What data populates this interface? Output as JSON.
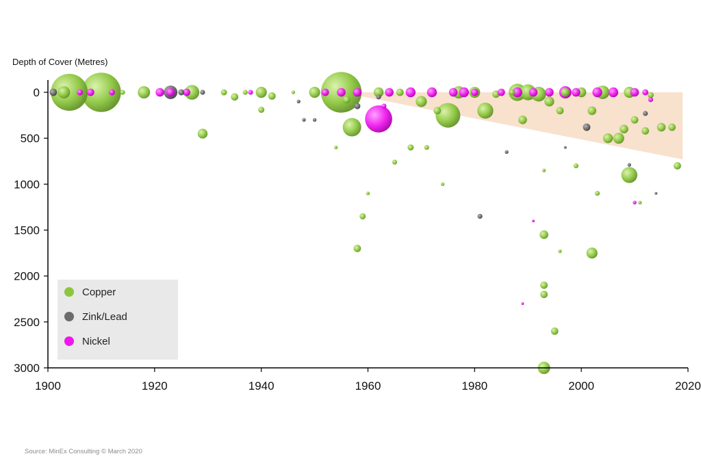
{
  "chart_data": {
    "type": "scatter",
    "title": "",
    "ylabel": "Depth of Cover (Metres)",
    "xlabel": "",
    "xlim": [
      1900,
      2020
    ],
    "ylim": [
      0,
      3000
    ],
    "y_inverted": true,
    "xticks": [
      "1900",
      "1920",
      "1940",
      "1960",
      "1980",
      "2000",
      "2020"
    ],
    "yticks": [
      "0",
      "500",
      "1000",
      "1500",
      "2000",
      "2500",
      "3000"
    ],
    "grid": false,
    "legend_position": "bottom-left",
    "trend_band": {
      "color": "#f6d7bc",
      "upper": [
        [
          1955,
          0
        ],
        [
          2019,
          0
        ]
      ],
      "lower": [
        [
          1955,
          0
        ],
        [
          2019,
          730
        ]
      ]
    },
    "series": [
      {
        "name": "Copper",
        "color": "#8cc63f",
        "points": [
          [
            1904,
            0,
            3
          ],
          [
            1910,
            0,
            3.2
          ],
          [
            1903,
            0,
            1
          ],
          [
            1914,
            0,
            0.4
          ],
          [
            1918,
            0,
            1
          ],
          [
            1927,
            0,
            1.2
          ],
          [
            1929,
            450,
            0.8
          ],
          [
            1933,
            0,
            0.5
          ],
          [
            1935,
            50,
            0.6
          ],
          [
            1937,
            0,
            0.4
          ],
          [
            1940,
            0,
            0.9
          ],
          [
            1940,
            190,
            0.5
          ],
          [
            1942,
            40,
            0.6
          ],
          [
            1946,
            0,
            0.3
          ],
          [
            1950,
            0,
            0.9
          ],
          [
            1955,
            0,
            3.3
          ],
          [
            1957,
            380,
            1.5
          ],
          [
            1956,
            80,
            0.6
          ],
          [
            1954,
            600,
            0.3
          ],
          [
            1958,
            1700,
            0.6
          ],
          [
            1959,
            1350,
            0.5
          ],
          [
            1960,
            1100,
            0.3
          ],
          [
            1965,
            760,
            0.4
          ],
          [
            1968,
            600,
            0.5
          ],
          [
            1971,
            600,
            0.4
          ],
          [
            1970,
            100,
            0.9
          ],
          [
            1975,
            250,
            2.0
          ],
          [
            1973,
            200,
            0.6
          ],
          [
            1977,
            0,
            1
          ],
          [
            1980,
            0,
            0.9
          ],
          [
            1982,
            200,
            1.3
          ],
          [
            1984,
            20,
            0.6
          ],
          [
            1987,
            0,
            0.5
          ],
          [
            1988,
            0,
            1.4
          ],
          [
            1990,
            0,
            1.3
          ],
          [
            1989,
            300,
            0.7
          ],
          [
            1992,
            20,
            1.2
          ],
          [
            1994,
            100,
            0.8
          ],
          [
            1997,
            0,
            0.7
          ],
          [
            1996,
            200,
            0.6
          ],
          [
            1993,
            1550,
            0.7
          ],
          [
            1993,
            2100,
            0.6
          ],
          [
            1993,
            2200,
            0.6
          ],
          [
            1995,
            2600,
            0.6
          ],
          [
            1993,
            3000,
            1.0
          ],
          [
            1993,
            850,
            0.3
          ],
          [
            1996,
            1730,
            0.3
          ],
          [
            1999,
            800,
            0.4
          ],
          [
            2000,
            0,
            0.8
          ],
          [
            2002,
            1750,
            0.9
          ],
          [
            2002,
            200,
            0.7
          ],
          [
            2004,
            0,
            1.1
          ],
          [
            2003,
            1100,
            0.4
          ],
          [
            2005,
            500,
            0.8
          ],
          [
            2007,
            500,
            0.9
          ],
          [
            2008,
            400,
            0.7
          ],
          [
            2009,
            900,
            1.3
          ],
          [
            2009,
            0,
            0.9
          ],
          [
            2010,
            300,
            0.6
          ],
          [
            2012,
            420,
            0.6
          ],
          [
            2013,
            30,
            0.5
          ],
          [
            2015,
            380,
            0.7
          ],
          [
            2017,
            380,
            0.6
          ],
          [
            2018,
            800,
            0.6
          ],
          [
            2011,
            1200,
            0.3
          ],
          [
            1974,
            1000,
            0.3
          ],
          [
            1962,
            0,
            0.8
          ],
          [
            1966,
            0,
            0.6
          ]
        ]
      },
      {
        "name": "Zink/Lead",
        "color": "#6b6b6b",
        "points": [
          [
            1901,
            0,
            0.6
          ],
          [
            1923,
            0,
            1.1
          ],
          [
            1925,
            0,
            0.5
          ],
          [
            1929,
            0,
            0.4
          ],
          [
            1947,
            100,
            0.3
          ],
          [
            1948,
            300,
            0.3
          ],
          [
            1950,
            300,
            0.3
          ],
          [
            1958,
            150,
            0.5
          ],
          [
            1981,
            1350,
            0.4
          ],
          [
            1986,
            650,
            0.3
          ],
          [
            2001,
            380,
            0.6
          ],
          [
            2012,
            230,
            0.4
          ],
          [
            1997,
            600,
            0.2
          ],
          [
            2009,
            790,
            0.3
          ],
          [
            2014,
            1100,
            0.2
          ],
          [
            1962,
            50,
            0.4
          ]
        ]
      },
      {
        "name": "Nickel",
        "color": "#ee18ee",
        "points": [
          [
            1906,
            0,
            0.5
          ],
          [
            1908,
            0,
            0.6
          ],
          [
            1912,
            0,
            0.5
          ],
          [
            1921,
            0,
            0.7
          ],
          [
            1923,
            0,
            0.7
          ],
          [
            1926,
            0,
            0.6
          ],
          [
            1938,
            0,
            0.4
          ],
          [
            1952,
            0,
            0.6
          ],
          [
            1955,
            0,
            0.7
          ],
          [
            1958,
            0,
            0.7
          ],
          [
            1962,
            290,
            2.2
          ],
          [
            1964,
            0,
            0.7
          ],
          [
            1968,
            0,
            0.8
          ],
          [
            1972,
            0,
            0.8
          ],
          [
            1976,
            0,
            0.7
          ],
          [
            1978,
            0,
            0.8
          ],
          [
            1980,
            0,
            0.6
          ],
          [
            1985,
            0,
            0.6
          ],
          [
            1988,
            0,
            0.8
          ],
          [
            1991,
            0,
            0.7
          ],
          [
            1994,
            0,
            0.7
          ],
          [
            1997,
            0,
            1.0
          ],
          [
            1999,
            0,
            0.7
          ],
          [
            2003,
            0,
            0.8
          ],
          [
            2006,
            0,
            0.8
          ],
          [
            2010,
            0,
            0.7
          ],
          [
            2012,
            0,
            0.5
          ],
          [
            2013,
            80,
            0.4
          ],
          [
            1963,
            150,
            0.4
          ],
          [
            1989,
            2300,
            0.2
          ],
          [
            2010,
            1200,
            0.3
          ],
          [
            1991,
            1400,
            0.2
          ]
        ]
      }
    ]
  },
  "legend": {
    "items": [
      {
        "label": "Copper",
        "color": "#8cc63f"
      },
      {
        "label": "Zink/Lead",
        "color": "#6b6b6b"
      },
      {
        "label": "Nickel",
        "color": "#ee18ee"
      }
    ]
  },
  "source": "Source: MinEx Consulting © March 2020"
}
